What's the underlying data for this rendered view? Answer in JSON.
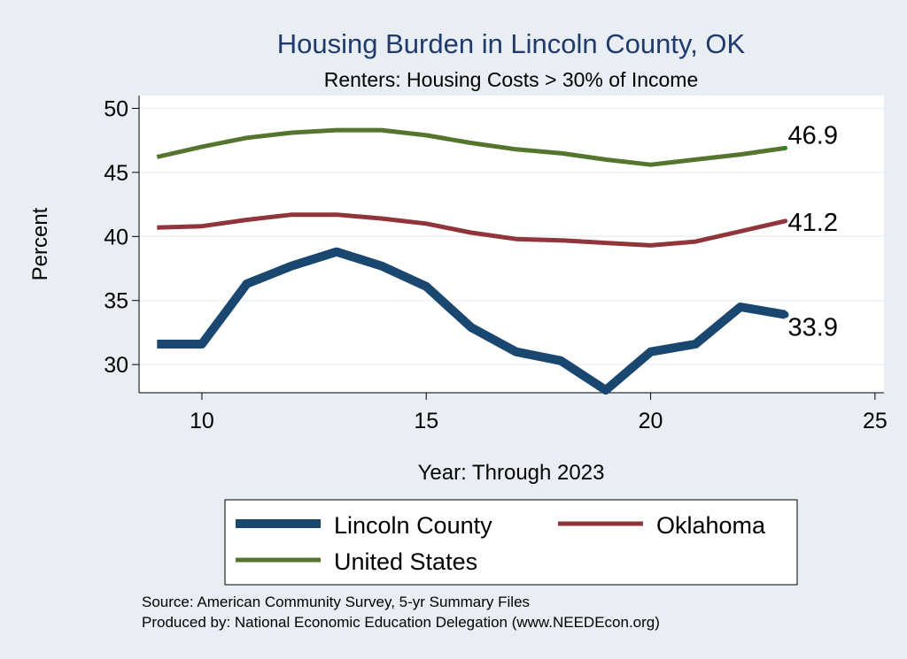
{
  "chart_data": {
    "type": "line",
    "title": "Housing Burden in Lincoln County, OK",
    "subtitle": "Renters: Housing Costs > 30% of Income",
    "xlabel": "Year: Through 2023",
    "ylabel": "Percent",
    "xlim": [
      8.6,
      25.2
    ],
    "ylim": [
      27.8,
      51.0
    ],
    "xticks": [
      10,
      15,
      20,
      25
    ],
    "yticks": [
      30,
      35,
      40,
      45,
      50
    ],
    "grid": true,
    "series": [
      {
        "name": "Lincoln County",
        "color": "#1a476f",
        "width": 10,
        "x": [
          9,
          10,
          11,
          12,
          13,
          14,
          15,
          16,
          17,
          18,
          19,
          20,
          21,
          22,
          23
        ],
        "values": [
          31.6,
          31.6,
          36.3,
          37.7,
          38.8,
          37.7,
          36.1,
          32.9,
          31.0,
          30.3,
          28.0,
          31.0,
          31.6,
          34.5,
          33.9
        ],
        "end_label": "33.9"
      },
      {
        "name": "Oklahoma",
        "color": "#90353b",
        "width": 5,
        "x": [
          9,
          10,
          11,
          12,
          13,
          14,
          15,
          16,
          17,
          18,
          19,
          20,
          21,
          22,
          23
        ],
        "values": [
          40.7,
          40.8,
          41.3,
          41.7,
          41.7,
          41.4,
          41.0,
          40.3,
          39.8,
          39.7,
          39.5,
          39.3,
          39.6,
          40.4,
          41.2
        ],
        "end_label": "41.2"
      },
      {
        "name": "United States",
        "color": "#55752f",
        "width": 5,
        "x": [
          9,
          10,
          11,
          12,
          13,
          14,
          15,
          16,
          17,
          18,
          19,
          20,
          21,
          22,
          23
        ],
        "values": [
          46.2,
          47.0,
          47.7,
          48.1,
          48.3,
          48.3,
          47.9,
          47.3,
          46.8,
          46.5,
          46.0,
          45.6,
          46.0,
          46.4,
          46.9
        ],
        "end_label": "46.9"
      }
    ],
    "legend": [
      "Lincoln County",
      "Oklahoma",
      "United States"
    ]
  },
  "notes": {
    "source": "Source: American Community Survey, 5-yr Summary Files",
    "produced": "Produced by: National Economic Education Delegation (www.NEEDEcon.org)"
  }
}
